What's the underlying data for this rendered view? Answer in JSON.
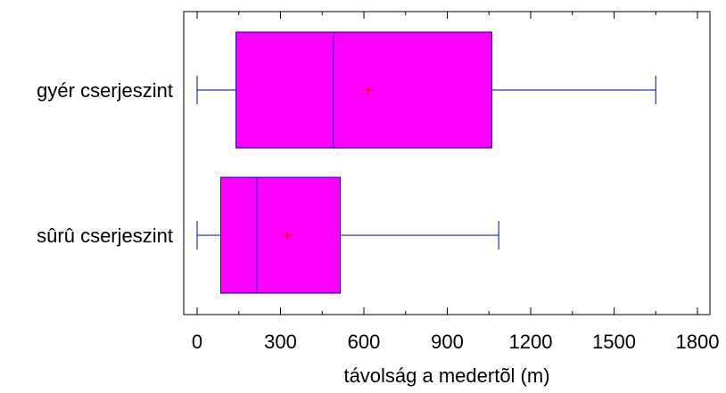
{
  "chart_data": {
    "type": "box",
    "orientation": "horizontal",
    "xlabel": "távolság a medertõl (m)",
    "xlim": [
      -50,
      1850
    ],
    "xticks": [
      0,
      300,
      600,
      900,
      1200,
      1500,
      1800
    ],
    "tick_labels": [
      "0",
      "300",
      "600",
      "900",
      "1200",
      "1500",
      "1800"
    ],
    "grid": false,
    "colors": {
      "box_fill": "#ff00ff",
      "box_edge": "#0000aa",
      "mean_marker": "#ff0000"
    },
    "series": [
      {
        "category": "gyér cserjeszint",
        "min": 0,
        "q1": 140,
        "median": 490,
        "q3": 1060,
        "max": 1650,
        "mean": 615
      },
      {
        "category": "sûrû cserjeszint",
        "min": 0,
        "q1": 85,
        "median": 215,
        "q3": 515,
        "max": 1085,
        "mean": 325
      }
    ]
  }
}
